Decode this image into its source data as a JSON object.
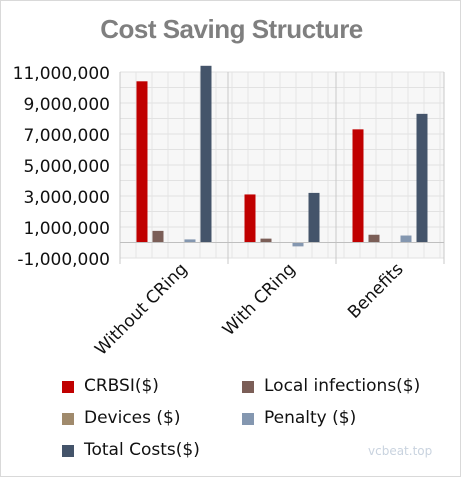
{
  "chart_data": {
    "type": "bar",
    "title": "Cost Saving Structure",
    "categories": [
      "Without CRing",
      "With CRing",
      "Benefits"
    ],
    "ylim": [
      -1000000,
      11000000
    ],
    "yticks": [
      11000000,
      9000000,
      7000000,
      5000000,
      3000000,
      1000000,
      -1000000
    ],
    "ytick_labels": [
      "11,000,000",
      "9,000,000",
      "7,000,000",
      "5,000,000",
      "3,000,000",
      "1,000,000",
      "-1,000,000"
    ],
    "grid": true,
    "legend_position": "bottom",
    "series": [
      {
        "name": "CRBSI($)",
        "color": "#c00000",
        "values": [
          10400000,
          3100000,
          7300000
        ]
      },
      {
        "name": "Local infections($)",
        "color": "#7b5e57",
        "values": [
          750000,
          250000,
          500000
        ]
      },
      {
        "name": "Devices ($)",
        "color": "#a08a6c",
        "values": [
          0,
          0,
          0
        ]
      },
      {
        "name": "Penalty ($)",
        "color": "#8497b0",
        "values": [
          200000,
          -250000,
          450000
        ]
      },
      {
        "name": "Total Costs($)",
        "color": "#44546a",
        "values": [
          11400000,
          3200000,
          8300000
        ]
      }
    ]
  },
  "watermark": "vcbeat.top"
}
